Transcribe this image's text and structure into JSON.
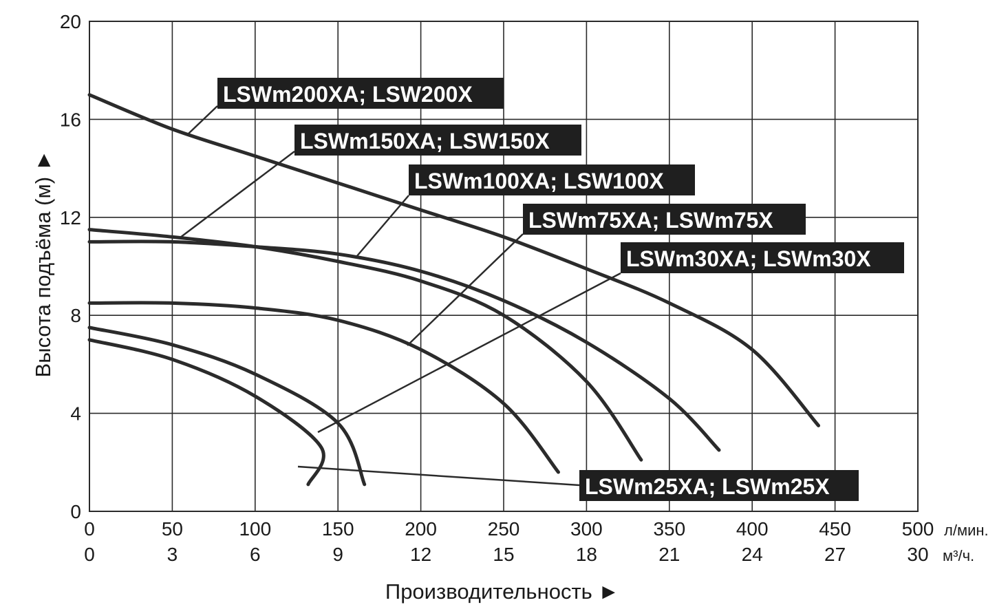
{
  "chart_data": {
    "type": "line",
    "title": "",
    "xlabel": "Производительность ►",
    "ylabel": "Высота подъёма (м) ►",
    "x_unit_primary": "л/мин.",
    "x_unit_secondary": "м³/ч.",
    "xlim": [
      0,
      500
    ],
    "ylim": [
      0,
      20
    ],
    "x_ticks": [
      0,
      50,
      100,
      150,
      200,
      250,
      300,
      350,
      400,
      450,
      500
    ],
    "x_ticks_secondary": [
      0,
      3,
      6,
      9,
      12,
      15,
      18,
      21,
      24,
      27,
      30
    ],
    "y_ticks": [
      0,
      4,
      8,
      12,
      16,
      20
    ],
    "grid": true,
    "series": [
      {
        "name": "LSWm200XA; LSW200X",
        "points": [
          [
            0,
            17
          ],
          [
            50,
            15.6
          ],
          [
            100,
            14.5
          ],
          [
            150,
            13.4
          ],
          [
            200,
            12.3
          ],
          [
            250,
            11.2
          ],
          [
            300,
            9.9
          ],
          [
            350,
            8.5
          ],
          [
            400,
            6.6
          ],
          [
            440,
            3.5
          ]
        ]
      },
      {
        "name": "LSWm150XA; LSW150X",
        "points": [
          [
            0,
            11
          ],
          [
            50,
            11
          ],
          [
            100,
            10.8
          ],
          [
            150,
            10.5
          ],
          [
            200,
            9.8
          ],
          [
            250,
            8.6
          ],
          [
            300,
            6.9
          ],
          [
            350,
            4.6
          ],
          [
            380,
            2.5
          ]
        ]
      },
      {
        "name": "LSWm100XA; LSW100X",
        "points": [
          [
            0,
            11.5
          ],
          [
            50,
            11.2
          ],
          [
            100,
            10.8
          ],
          [
            150,
            10.2
          ],
          [
            200,
            9.4
          ],
          [
            250,
            8.0
          ],
          [
            300,
            5.3
          ],
          [
            333,
            2.1
          ]
        ]
      },
      {
        "name": "LSWm75XA; LSWm75X",
        "points": [
          [
            0,
            8.5
          ],
          [
            50,
            8.5
          ],
          [
            100,
            8.3
          ],
          [
            150,
            7.8
          ],
          [
            200,
            6.6
          ],
          [
            250,
            4.4
          ],
          [
            283,
            1.6
          ]
        ]
      },
      {
        "name": "LSWm30XA; LSWm30X",
        "points": [
          [
            0,
            7.5
          ],
          [
            50,
            6.8
          ],
          [
            100,
            5.6
          ],
          [
            150,
            3.6
          ],
          [
            166,
            1.1
          ]
        ]
      },
      {
        "name": "LSWm25XA; LSWm25X",
        "points": [
          [
            0,
            7.0
          ],
          [
            50,
            6.2
          ],
          [
            100,
            4.7
          ],
          [
            140,
            2.6
          ],
          [
            132,
            1.1
          ]
        ]
      }
    ],
    "labels": [
      "LSWm200XA; LSW200X",
      "LSWm150XA; LSW150X",
      "LSWm100XA; LSW100X",
      "LSWm75XA; LSWm75X",
      "LSWm30XA; LSWm30X",
      "LSWm25XA; LSWm25X"
    ]
  }
}
